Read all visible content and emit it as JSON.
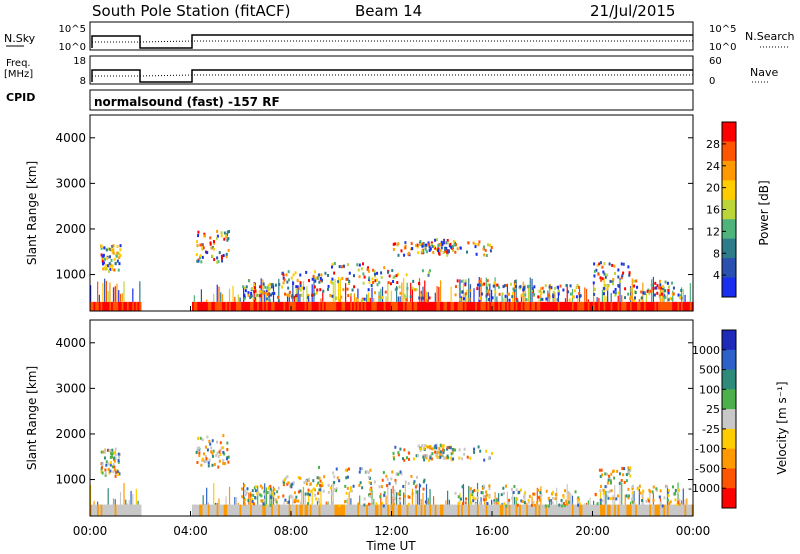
{
  "header": {
    "title": "South Pole Station (fitACF)",
    "beam": "Beam 14",
    "date": "21/Jul/2015"
  },
  "param_panels": {
    "nsky": {
      "label": "N.Sky",
      "ytick_top": "10^5",
      "ytick_bottom": "10^0",
      "right_label": "N.Search",
      "rtick_top": "10^5",
      "rtick_bottom": "10^0"
    },
    "freq": {
      "label_line1": "Freq.",
      "label_line2": "[MHz]",
      "ytick_top": "18",
      "ytick_bottom": "8",
      "right_label": "Nave",
      "rtick_top": "60",
      "rtick_bottom": "0"
    },
    "cpid": {
      "label": "CPID",
      "text": "normalsound (fast) -157 RF"
    }
  },
  "chart_data": [
    {
      "type": "heatmap",
      "name": "power",
      "ylabel": "Slant Range [km]",
      "yticks": [
        "4000",
        "3000",
        "2000",
        "1000"
      ],
      "ylim": [
        200,
        4500
      ],
      "xlim": [
        0,
        24
      ],
      "colorbar": {
        "label": "Power [dB]",
        "ticks": [
          "28",
          "24",
          "20",
          "16",
          "12",
          "8",
          "4"
        ],
        "colors": [
          "#ff0000",
          "#ff5500",
          "#ff9900",
          "#ffcc00",
          "#bcd63a",
          "#4fb37c",
          "#2e7c8a",
          "#2a50b0",
          "#1a2ef0"
        ]
      },
      "data_gap_hours": [
        2.0,
        4.0
      ]
    },
    {
      "type": "heatmap",
      "name": "velocity",
      "ylabel": "Slant Range [km]",
      "yticks": [
        "4000",
        "3000",
        "2000",
        "1000"
      ],
      "ylim": [
        200,
        4500
      ],
      "xlim": [
        0,
        24
      ],
      "colorbar": {
        "label": "Velocity [m s⁻¹]",
        "ticks": [
          "1000",
          "500",
          "100",
          "25",
          "-25",
          "-100",
          "-500",
          "-1000"
        ],
        "colors": [
          "#1e2ab8",
          "#2f62c8",
          "#2e8a7a",
          "#4cb04c",
          "#c8c8c8",
          "#ffcc00",
          "#ff9900",
          "#ff5500",
          "#ff0000"
        ]
      },
      "data_gap_hours": [
        2.0,
        4.0
      ]
    }
  ],
  "x_axis": {
    "label": "Time UT",
    "ticks": [
      "00:00",
      "04:00",
      "08:00",
      "12:00",
      "16:00",
      "20:00",
      "00:00"
    ]
  }
}
